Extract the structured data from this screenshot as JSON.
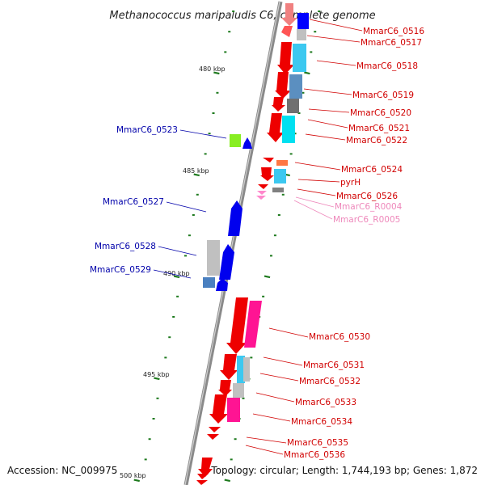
{
  "title": "Methanococcus maripaludis C6, complete genome",
  "footer": {
    "accession": "Accession: NC_009975",
    "topology": "Topology: circular; Length: 1,744,193 bp; Genes: 1,872"
  },
  "colors": {
    "backbone": "#777777",
    "forward_label": "#d10000",
    "reverse_label": "#0000aa",
    "rna_label": "#ee88bb",
    "tick": "#1e7a1e"
  },
  "scale_labels": [
    "480 kbp",
    "485 kbp",
    "490 kbp",
    "495 kbp",
    "500 kbp"
  ],
  "right_labels": [
    "MmarC6_0516",
    "MmarC6_0517",
    "MmarC6_0518",
    "MmarC6_0519",
    "MmarC6_0520",
    "MmarC6_0521",
    "MmarC6_0522",
    "MmarC6_0524",
    "pyrH",
    "MmarC6_0526",
    "MmarC6_R0004",
    "MmarC6_R0005",
    "MmarC6_0530",
    "MmarC6_0531",
    "MmarC6_0532",
    "MmarC6_0533",
    "MmarC6_0534",
    "MmarC6_0535",
    "MmarC6_0536"
  ],
  "left_labels": [
    "MmarC6_0523",
    "MmarC6_0527",
    "MmarC6_0528",
    "MmarC6_0529"
  ]
}
